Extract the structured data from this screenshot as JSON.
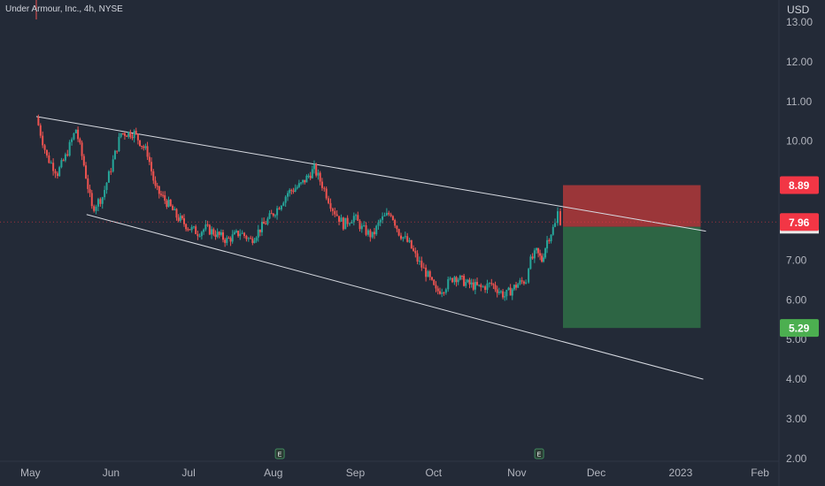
{
  "header": {
    "symbol": "Under Armour, Inc., 4h, NYSE",
    "currency": "USD"
  },
  "colors": {
    "background": "#232a37",
    "up_candle": "#26a69a",
    "down_candle": "#ef5350",
    "line": "#d8dbe2",
    "stop_zone": "#b0383a",
    "target_zone": "#2f6b46",
    "badge_red": "#f23645",
    "badge_green": "#4caf50",
    "badge_gray": "#e8e8e8"
  },
  "chart_data": {
    "type": "candlestick",
    "title": "Under Armour, Inc., 4h, NYSE",
    "currency": "USD",
    "y_ticks": [
      "13.00",
      "12.00",
      "11.00",
      "10.00",
      "9.00",
      "8.00",
      "7.00",
      "6.00",
      "5.00",
      "4.00",
      "3.00",
      "2.00"
    ],
    "x_ticks": [
      "May",
      "Jun",
      "Jul",
      "Aug",
      "Sep",
      "Oct",
      "Nov",
      "Dec",
      "2023",
      "Feb"
    ],
    "ylim": [
      2.0,
      13.2
    ],
    "price_path": [
      [
        "2022-05-02",
        10.6
      ],
      [
        "2022-05-06",
        9.6
      ],
      [
        "2022-05-10",
        9.2
      ],
      [
        "2022-05-13",
        9.6
      ],
      [
        "2022-05-17",
        10.3
      ],
      [
        "2022-05-20",
        9.4
      ],
      [
        "2022-05-23",
        8.3
      ],
      [
        "2022-05-27",
        8.6
      ],
      [
        "2022-05-31",
        9.5
      ],
      [
        "2022-06-03",
        10.2
      ],
      [
        "2022-06-08",
        10.2
      ],
      [
        "2022-06-13",
        9.7
      ],
      [
        "2022-06-16",
        8.8
      ],
      [
        "2022-06-21",
        8.4
      ],
      [
        "2022-06-24",
        8.1
      ],
      [
        "2022-06-29",
        7.8
      ],
      [
        "2022-07-02",
        7.7
      ],
      [
        "2022-07-05",
        7.8
      ],
      [
        "2022-07-08",
        7.7
      ],
      [
        "2022-07-13",
        7.5
      ],
      [
        "2022-07-18",
        7.7
      ],
      [
        "2022-07-22",
        7.5
      ],
      [
        "2022-07-27",
        7.9
      ],
      [
        "2022-08-01",
        8.3
      ],
      [
        "2022-08-05",
        8.7
      ],
      [
        "2022-08-10",
        8.9
      ],
      [
        "2022-08-15",
        9.3
      ],
      [
        "2022-08-18",
        8.9
      ],
      [
        "2022-08-22",
        8.3
      ],
      [
        "2022-08-26",
        7.9
      ],
      [
        "2022-08-30",
        8.1
      ],
      [
        "2022-09-02",
        7.8
      ],
      [
        "2022-09-06",
        7.6
      ],
      [
        "2022-09-09",
        8.0
      ],
      [
        "2022-09-13",
        8.2
      ],
      [
        "2022-09-16",
        7.7
      ],
      [
        "2022-09-20",
        7.4
      ],
      [
        "2022-09-23",
        7.0
      ],
      [
        "2022-09-27",
        6.6
      ],
      [
        "2022-09-30",
        6.2
      ],
      [
        "2022-10-03",
        6.3
      ],
      [
        "2022-10-07",
        6.6
      ],
      [
        "2022-10-12",
        6.4
      ],
      [
        "2022-10-17",
        6.3
      ],
      [
        "2022-10-21",
        6.4
      ],
      [
        "2022-10-26",
        6.1
      ],
      [
        "2022-10-31",
        6.4
      ],
      [
        "2022-11-03",
        6.5
      ],
      [
        "2022-11-04",
        6.9
      ],
      [
        "2022-11-07",
        7.2
      ],
      [
        "2022-11-09",
        7.0
      ],
      [
        "2022-11-11",
        7.5
      ],
      [
        "2022-11-14",
        7.9
      ],
      [
        "2022-11-15",
        8.2
      ],
      [
        "2022-11-16",
        8.0
      ]
    ],
    "channel_lines": [
      {
        "name": "upper",
        "from": [
          "2022-05-02",
          10.62
        ],
        "to": [
          "2023-01-10",
          7.73
        ]
      },
      {
        "name": "lower",
        "from": [
          "2022-05-21",
          8.15
        ],
        "to": [
          "2023-01-09",
          4.0
        ]
      }
    ],
    "position": {
      "stop_price": 8.89,
      "entry_price": 7.84,
      "target_price": 5.29,
      "start": "2022-11-17",
      "end": "2023-01-08"
    },
    "price_labels": [
      {
        "value": "8.89",
        "color": "#f23645"
      },
      {
        "value": "7.96",
        "color": "#f23645"
      },
      {
        "value": "5.29",
        "color": "#4caf50"
      }
    ],
    "events": [
      {
        "date": "2022-08-02",
        "label": "E"
      },
      {
        "date": "2022-11-08",
        "label": "E"
      }
    ],
    "grid": false,
    "legend": "none"
  }
}
